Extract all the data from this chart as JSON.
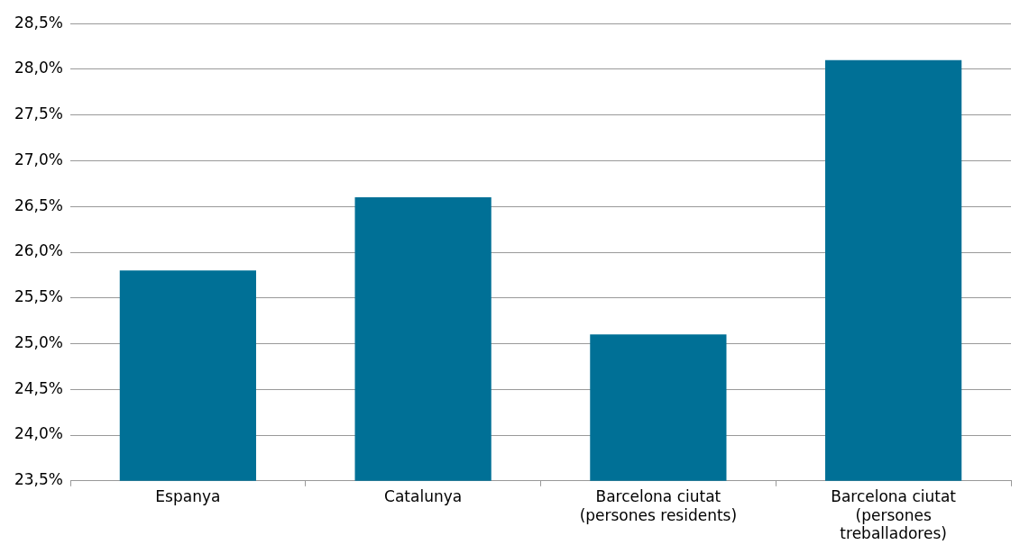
{
  "chart_data": {
    "type": "bar",
    "categories": [
      "Espanya",
      "Catalunya",
      "Barcelona ciutat (persones residents)",
      "Barcelona ciutat (persones treballadores)"
    ],
    "values": [
      25.8,
      26.6,
      25.1,
      28.1
    ],
    "color": "#007096",
    "ylim": [
      23.5,
      28.5
    ],
    "yticks": [
      {
        "value": 23.5,
        "label": "23,5%"
      },
      {
        "value": 24,
        "label": "24,0%"
      },
      {
        "value": 24.5,
        "label": "24,5%"
      },
      {
        "value": 25,
        "label": "25,0%"
      },
      {
        "value": 25.5,
        "label": "25,5%"
      },
      {
        "value": 26,
        "label": "26,0%"
      },
      {
        "value": 26.5,
        "label": "26,5%"
      },
      {
        "value": 27,
        "label": "27,0%"
      },
      {
        "value": 27.5,
        "label": "27,5%"
      },
      {
        "value": 28,
        "label": "28,0%"
      },
      {
        "value": 28.5,
        "label": "28,5%"
      }
    ],
    "grid": "y",
    "legend": false
  }
}
